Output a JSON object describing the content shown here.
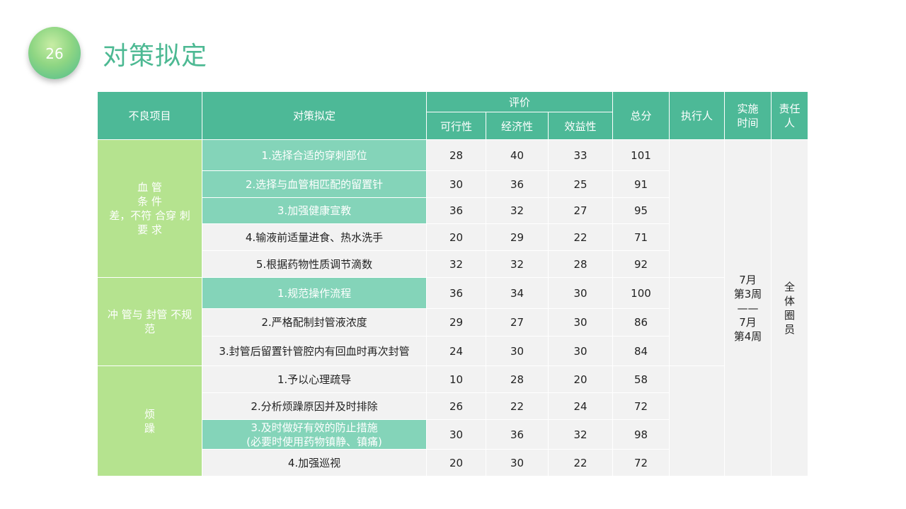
{
  "page": {
    "number": "26",
    "title": "对策拟定"
  },
  "table": {
    "headers": {
      "item": "不良项目",
      "measure": "对策拟定",
      "eval": "评价",
      "feasibility": "可行性",
      "economy": "经济性",
      "benefit": "效益性",
      "total": "总分",
      "executor": "执行人",
      "time": "实施\n时间",
      "owner": "责任\n人"
    },
    "groups": [
      {
        "category": "血 管\n条 件\n差，不符 合穿 刺\n要 求",
        "rows": [
          {
            "measure": "1.选择合适的穿刺部位",
            "feasibility": "28",
            "economy": "40",
            "benefit": "33",
            "total": "101",
            "highlight": true
          },
          {
            "measure": "2.选择与血管相匹配的留置针",
            "feasibility": "30",
            "economy": "36",
            "benefit": "25",
            "total": "91",
            "highlight": true
          },
          {
            "measure": "3.加强健康宣教",
            "feasibility": "36",
            "economy": "32",
            "benefit": "27",
            "total": "95",
            "highlight": true
          },
          {
            "measure": "4.输液前适量进食、热水洗手",
            "feasibility": "20",
            "economy": "29",
            "benefit": "22",
            "total": "71",
            "highlight": false
          },
          {
            "measure": "5.根据药物性质调节滴数",
            "feasibility": "32",
            "economy": "32",
            "benefit": "28",
            "total": "92",
            "highlight": false
          }
        ]
      },
      {
        "category": "冲 管与 封管 不规\n范",
        "rows": [
          {
            "measure": "1.规范操作流程",
            "feasibility": "36",
            "economy": "34",
            "benefit": "30",
            "total": "100",
            "highlight": true
          },
          {
            "measure": "2.严格配制封管液浓度",
            "feasibility": "29",
            "economy": "27",
            "benefit": "30",
            "total": "86",
            "highlight": false
          },
          {
            "measure": "3.封管后留置针管腔内有回血时再次封管",
            "feasibility": "24",
            "economy": "30",
            "benefit": "30",
            "total": "84",
            "highlight": false
          }
        ]
      },
      {
        "category": "烦\n躁",
        "rows": [
          {
            "measure": "1.予以心理疏导",
            "feasibility": "10",
            "economy": "28",
            "benefit": "20",
            "total": "58",
            "highlight": false
          },
          {
            "measure": "2.分析烦躁原因并及时排除",
            "feasibility": "26",
            "economy": "22",
            "benefit": "24",
            "total": "72",
            "highlight": false
          },
          {
            "measure": "3.及时做好有效的防止措施\n(必要时使用药物镇静、镇痛)",
            "feasibility": "30",
            "economy": "36",
            "benefit": "32",
            "total": "98",
            "highlight": true
          },
          {
            "measure": "4.加强巡视",
            "feasibility": "20",
            "economy": "30",
            "benefit": "22",
            "total": "72",
            "highlight": false
          }
        ]
      }
    ],
    "time_value": "7月\n第3周\n——\n7月\n第4周",
    "owner_value": "全\n体\n圈\n员",
    "colors": {
      "header": "#4db997",
      "category": "#b5e38f",
      "highlight": "#84d4b9",
      "cell": "#f2f2f2",
      "title": "#4db993"
    }
  }
}
